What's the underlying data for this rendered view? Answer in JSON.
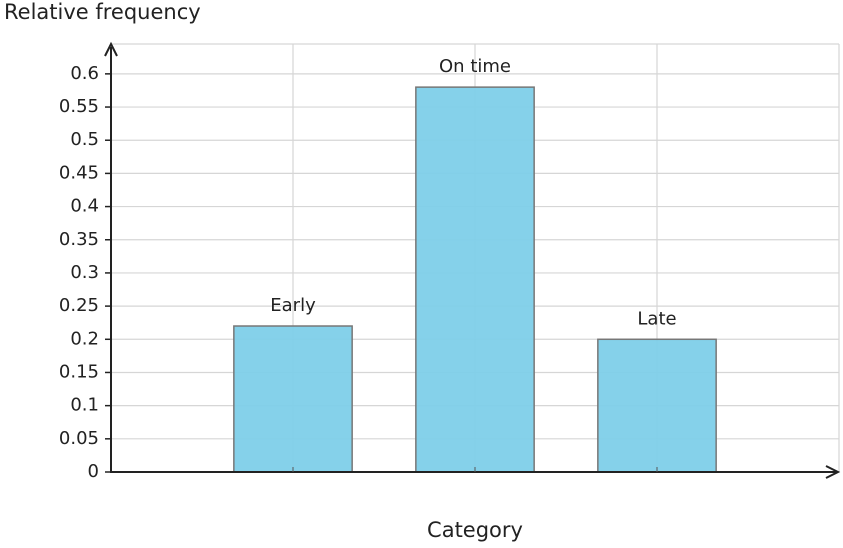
{
  "chart_data": {
    "type": "bar",
    "y_label": "Relative frequency",
    "x_label": "Category",
    "categories": [
      "Early",
      "On time",
      "Late"
    ],
    "values": [
      0.22,
      0.58,
      0.2
    ],
    "color": "#7ecfe9",
    "ylim": [
      0,
      0.645
    ],
    "yticks": [
      0,
      0.05,
      0.1,
      0.15,
      0.2,
      0.25,
      0.3,
      0.35,
      0.4,
      0.45,
      0.5,
      0.55,
      0.6
    ],
    "grid": true
  }
}
